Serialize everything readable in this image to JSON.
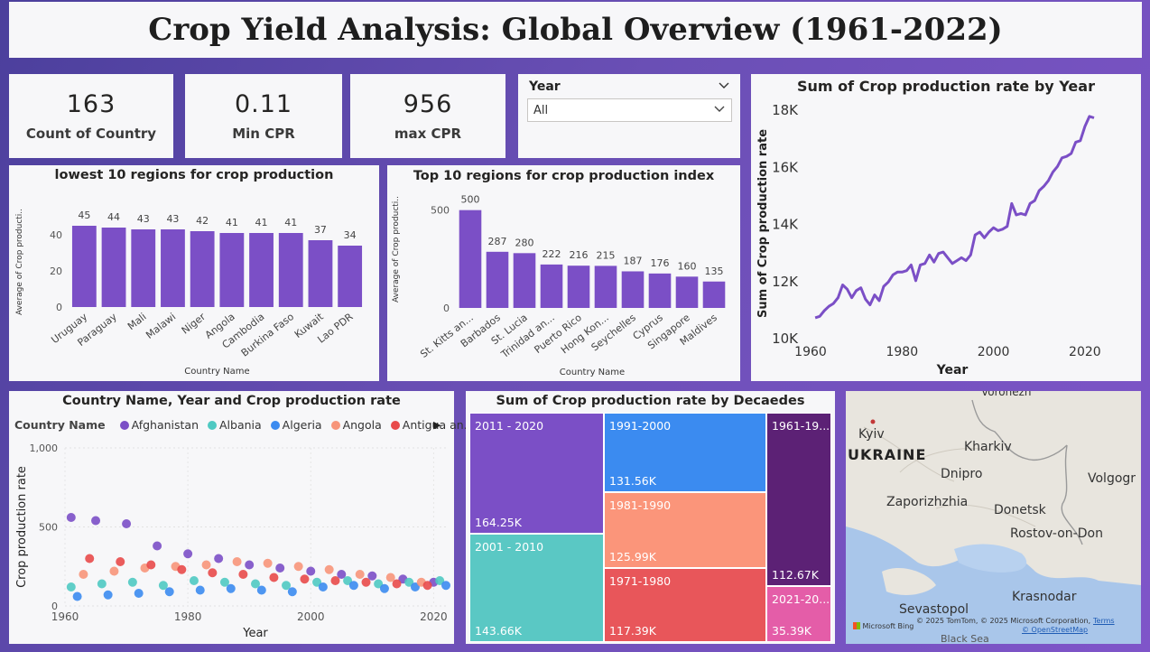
{
  "title": "Crop Yield Analysis: Global Overview (1961-2022)",
  "cards": [
    {
      "value": "163",
      "label": "Count of Country"
    },
    {
      "value": "0.11",
      "label": "Min CPR"
    },
    {
      "value": "956",
      "label": "max CPR"
    }
  ],
  "slicer": {
    "title": "Year",
    "value": "All",
    "chevron": "⌄"
  },
  "lowest_chart": {
    "title": "lowest 10 regions for crop production",
    "xlabel": "Country Name",
    "ylabel": "Average of Crop producti..",
    "ticks": [
      "0",
      "20",
      "40"
    ],
    "color": "#7b4fc6"
  },
  "top_chart": {
    "title": "Top 10 regions for crop production index",
    "xlabel": "Country Name",
    "ylabel": "Average of Crop producti..",
    "ticks": [
      "0",
      "500"
    ],
    "color": "#7b4fc6"
  },
  "line_chart": {
    "title": "Sum of Crop production rate by Year",
    "xlabel": "Year",
    "ylabel": "Sum of Crop production rate",
    "yticks": [
      "10K",
      "12K",
      "14K",
      "16K",
      "18K"
    ],
    "xticks": [
      "1960",
      "1980",
      "2000",
      "2020"
    ],
    "color": "#7b4fc6"
  },
  "scatter_chart": {
    "title": "Country Name, Year and Crop production rate",
    "legend_title": "Country Name",
    "legend": [
      {
        "name": "Afghanistan",
        "color": "#7b4fc6"
      },
      {
        "name": "Albania",
        "color": "#4fc9c2"
      },
      {
        "name": "Algeria",
        "color": "#3b8bf0"
      },
      {
        "name": "Angola",
        "color": "#f7957a"
      },
      {
        "name": "Antigua an...",
        "color": "#e84a4a"
      }
    ],
    "legend_next": "▶",
    "xlabel": "Year",
    "ylabel": "Crop production rate",
    "yticks": [
      "0",
      "500",
      "1,000"
    ],
    "xticks": [
      "1960",
      "1980",
      "2000",
      "2020"
    ]
  },
  "treemap": {
    "title": "Sum of Crop production rate by Decaedes",
    "cells": [
      {
        "name": "2011 - 2020",
        "value": "164.25K",
        "color": "#7b4fc6"
      },
      {
        "name": "2001 - 2010",
        "value": "143.66K",
        "color": "#5ac8c4"
      },
      {
        "name": "1991-2000",
        "value": "131.56K",
        "color": "#3b8bf0"
      },
      {
        "name": "1981-1990",
        "value": "125.99K",
        "color": "#fb957a"
      },
      {
        "name": "1971-1980",
        "value": "117.39K",
        "color": "#e8565a"
      },
      {
        "name": "1961-19...",
        "value": "112.67K",
        "color": "#5c2175"
      },
      {
        "name": "2021-20...",
        "value": "35.39K",
        "color": "#e45da8"
      }
    ]
  },
  "map": {
    "country": "UKRAINE",
    "cities": [
      "Voronezh",
      "Kyiv",
      "Kharkiv",
      "Dnipro",
      "Volgogr",
      "Zaporizhzhia",
      "Donetsk",
      "Rostov-on-Don",
      "Sevastopol",
      "Krasnodar",
      "Black Sea"
    ],
    "attribution": "© 2025 TomTom, © 2025 Microsoft Corporation,",
    "terms": "Terms",
    "osm": "© OpenStreetMap",
    "logo": "Microsoft Bing"
  },
  "chart_data": [
    {
      "type": "bar",
      "title": "lowest 10 regions for crop production",
      "xlabel": "Country Name",
      "ylabel": "Average of Crop producti..",
      "categories": [
        "Uruguay",
        "Paraguay",
        "Mali",
        "Malawi",
        "Niger",
        "Angola",
        "Cambodia",
        "Burkina Faso",
        "Kuwait",
        "Lao PDR"
      ],
      "values": [
        45,
        44,
        43,
        43,
        42,
        41,
        41,
        41,
        37,
        34
      ],
      "ylim": [
        0,
        50
      ]
    },
    {
      "type": "bar",
      "title": "Top 10 regions for crop production index",
      "xlabel": "Country Name",
      "ylabel": "Average of Crop producti..",
      "categories": [
        "St. Kitts an...",
        "Barbados",
        "St. Lucia",
        "Trinidad an...",
        "Puerto Rico",
        "Hong Kon...",
        "Seychelles",
        "Cyprus",
        "Singapore",
        "Maldives"
      ],
      "values": [
        500,
        287,
        280,
        222,
        216,
        215,
        187,
        176,
        160,
        135
      ],
      "ylim": [
        0,
        600
      ]
    },
    {
      "type": "line",
      "title": "Sum of Crop production rate by Year",
      "xlabel": "Year",
      "ylabel": "Sum of Crop production rate",
      "x": [
        1961,
        1962,
        1963,
        1964,
        1965,
        1966,
        1967,
        1968,
        1969,
        1970,
        1971,
        1972,
        1973,
        1974,
        1975,
        1976,
        1977,
        1978,
        1979,
        1980,
        1981,
        1982,
        1983,
        1984,
        1985,
        1986,
        1987,
        1988,
        1989,
        1990,
        1991,
        1992,
        1993,
        1994,
        1995,
        1996,
        1997,
        1998,
        1999,
        2000,
        2001,
        2002,
        2003,
        2004,
        2005,
        2006,
        2007,
        2008,
        2009,
        2010,
        2011,
        2012,
        2013,
        2014,
        2015,
        2016,
        2017,
        2018,
        2019,
        2020,
        2021,
        2022
      ],
      "y": [
        10700,
        10750,
        10950,
        11100,
        11200,
        11400,
        11850,
        11700,
        11400,
        11650,
        11750,
        11350,
        11150,
        11500,
        11300,
        11800,
        11950,
        12200,
        12300,
        12300,
        12350,
        12550,
        12000,
        12550,
        12600,
        12900,
        12650,
        12950,
        13000,
        12800,
        12600,
        12700,
        12800,
        12700,
        12900,
        13600,
        13700,
        13500,
        13700,
        13850,
        13750,
        13800,
        13900,
        14700,
        14300,
        14350,
        14300,
        14700,
        14800,
        15150,
        15300,
        15500,
        15800,
        16000,
        16300,
        16350,
        16450,
        16850,
        16900,
        17400,
        17750,
        17700
      ],
      "xlim": [
        1960,
        2022
      ],
      "ylim": [
        10000,
        18000
      ]
    },
    {
      "type": "scatter",
      "title": "Country Name, Year and Crop production rate",
      "xlabel": "Year",
      "ylabel": "Crop production rate",
      "xlim": [
        1960,
        2022
      ],
      "ylim": [
        0,
        1000
      ],
      "series": [
        {
          "name": "Afghanistan",
          "color": "#7b4fc6",
          "x": [
            1961,
            1965,
            1970,
            1975,
            1980,
            1985,
            1990,
            1995,
            2000,
            2005,
            2010,
            2015,
            2020
          ],
          "y": [
            560,
            540,
            520,
            380,
            330,
            300,
            260,
            240,
            220,
            200,
            190,
            170,
            150
          ]
        },
        {
          "name": "Albania",
          "color": "#4fc9c2",
          "x": [
            1961,
            1966,
            1971,
            1976,
            1981,
            1986,
            1991,
            1996,
            2001,
            2006,
            2011,
            2016,
            2021
          ],
          "y": [
            120,
            140,
            150,
            130,
            160,
            150,
            140,
            130,
            150,
            160,
            140,
            150,
            160
          ]
        },
        {
          "name": "Algeria",
          "color": "#3b8bf0",
          "x": [
            1962,
            1967,
            1972,
            1977,
            1982,
            1987,
            1992,
            1997,
            2002,
            2007,
            2012,
            2017,
            2022
          ],
          "y": [
            60,
            70,
            80,
            90,
            100,
            110,
            100,
            90,
            120,
            130,
            110,
            120,
            130
          ]
        },
        {
          "name": "Angola",
          "color": "#f7957a",
          "x": [
            1963,
            1968,
            1973,
            1978,
            1983,
            1988,
            1993,
            1998,
            2003,
            2008,
            2013,
            2018
          ],
          "y": [
            200,
            220,
            240,
            250,
            260,
            280,
            270,
            250,
            230,
            200,
            180,
            150
          ]
        },
        {
          "name": "Antigua an...",
          "color": "#e84a4a",
          "x": [
            1964,
            1969,
            1974,
            1979,
            1984,
            1989,
            1994,
            1999,
            2004,
            2009,
            2014,
            2019
          ],
          "y": [
            300,
            280,
            260,
            230,
            210,
            200,
            180,
            170,
            160,
            150,
            140,
            130
          ]
        }
      ]
    },
    {
      "type": "treemap",
      "title": "Sum of Crop production rate by Decaedes",
      "categories": [
        "2011 - 2020",
        "2001 - 2010",
        "1991-2000",
        "1981-1990",
        "1971-1980",
        "1961-19...",
        "2021-20..."
      ],
      "values": [
        164250,
        143660,
        131560,
        125990,
        117390,
        112670,
        35390
      ]
    }
  ]
}
